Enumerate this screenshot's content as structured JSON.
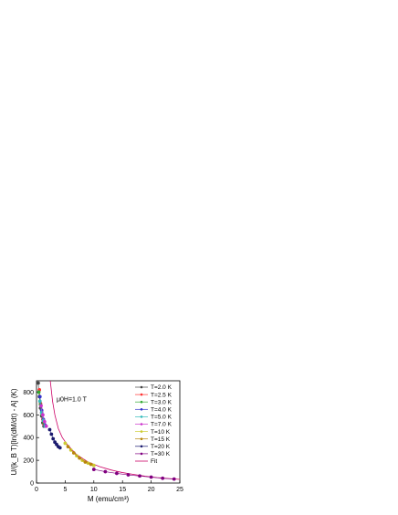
{
  "chart_data": {
    "type": "scatter",
    "xlabel": "M (emu/cm³)",
    "ylabel": "U/(k_B T)[ln(dM/dt) - A] (K)",
    "xlim": [
      0,
      25
    ],
    "ylim": [
      0,
      900
    ],
    "xticks": [
      0,
      5,
      10,
      15,
      20,
      25
    ],
    "yticks": [
      0,
      200,
      400,
      600,
      800
    ],
    "annotation": "μ0H=1.0 T",
    "legend_position": "top-right",
    "series": [
      {
        "name": "T=2.0 K",
        "color": "#444444",
        "marker": "square",
        "points": [
          [
            0.3,
            880
          ],
          [
            0.5,
            760
          ],
          [
            0.7,
            660
          ],
          [
            0.9,
            590
          ],
          [
            1.1,
            530
          ],
          [
            1.3,
            500
          ]
        ]
      },
      {
        "name": "T=2.5 K",
        "color": "#ff3333",
        "marker": "circle",
        "points": [
          [
            0.5,
            820
          ],
          [
            0.7,
            700
          ],
          [
            0.9,
            620
          ],
          [
            1.1,
            560
          ],
          [
            1.3,
            520
          ]
        ]
      },
      {
        "name": "T=3.0 K",
        "color": "#33aa33",
        "marker": "triangle",
        "points": [
          [
            0.4,
            800
          ],
          [
            0.7,
            690
          ],
          [
            1.0,
            600
          ],
          [
            1.3,
            530
          ]
        ]
      },
      {
        "name": "T=4.0 K",
        "color": "#3333cc",
        "marker": "triangle-down",
        "points": [
          [
            0.6,
            760
          ],
          [
            0.9,
            640
          ],
          [
            1.2,
            560
          ],
          [
            1.5,
            510
          ]
        ]
      },
      {
        "name": "T=5.0 K",
        "color": "#33bbbb",
        "marker": "diamond",
        "points": [
          [
            0.6,
            720
          ],
          [
            0.9,
            620
          ],
          [
            1.2,
            550
          ],
          [
            1.5,
            500
          ]
        ]
      },
      {
        "name": "T=7.0 K",
        "color": "#cc33cc",
        "marker": "triangle-left",
        "points": [
          [
            0.8,
            680
          ],
          [
            1.1,
            600
          ],
          [
            1.4,
            540
          ],
          [
            1.7,
            500
          ]
        ]
      },
      {
        "name": "T=10 K",
        "color": "#cccc33",
        "marker": "triangle-right",
        "points": [
          [
            5.0,
            350
          ],
          [
            6.0,
            290
          ],
          [
            7.0,
            240
          ],
          [
            8.0,
            200
          ],
          [
            9.0,
            175
          ],
          [
            10.0,
            155
          ]
        ]
      },
      {
        "name": "T=15 K",
        "color": "#b8860b",
        "marker": "hexagon",
        "points": [
          [
            5.5,
            320
          ],
          [
            6.5,
            265
          ],
          [
            7.5,
            220
          ],
          [
            8.5,
            185
          ],
          [
            9.5,
            165
          ]
        ]
      },
      {
        "name": "T=20 K",
        "color": "#1a1a6e",
        "marker": "star",
        "points": [
          [
            2.3,
            470
          ],
          [
            2.6,
            430
          ],
          [
            2.9,
            390
          ],
          [
            3.2,
            360
          ],
          [
            3.5,
            340
          ],
          [
            3.8,
            320
          ],
          [
            4.1,
            310
          ]
        ]
      },
      {
        "name": "T=30 K",
        "color": "#800080",
        "marker": "pentagon",
        "points": [
          [
            10,
            120
          ],
          [
            12,
            100
          ],
          [
            14,
            85
          ],
          [
            16,
            72
          ],
          [
            18,
            62
          ],
          [
            20,
            52
          ],
          [
            22,
            42
          ],
          [
            24,
            35
          ]
        ]
      }
    ],
    "fit": {
      "name": "Fit",
      "color": "#cc0066",
      "points": [
        [
          2.4,
          900
        ],
        [
          2.8,
          720
        ],
        [
          3.2,
          600
        ],
        [
          3.8,
          480
        ],
        [
          4.5,
          400
        ],
        [
          5.5,
          330
        ],
        [
          7,
          250
        ],
        [
          9,
          185
        ],
        [
          11,
          145
        ],
        [
          13,
          115
        ],
        [
          15,
          92
        ],
        [
          17,
          75
        ],
        [
          19,
          60
        ],
        [
          21,
          48
        ],
        [
          23,
          40
        ],
        [
          25,
          32
        ]
      ]
    }
  }
}
